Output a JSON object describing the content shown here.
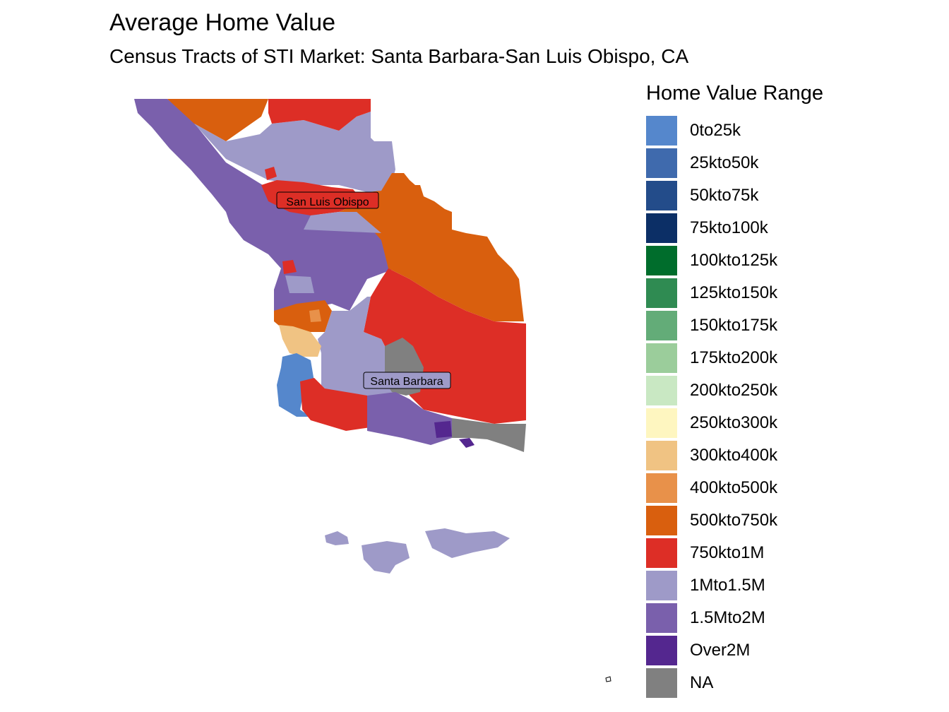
{
  "header": {
    "title": "Average Home Value",
    "subtitle": "Census Tracts of STI Market: Santa Barbara-San Luis Obispo, CA"
  },
  "map": {
    "place_labels": {
      "north": "San Luis Obispo",
      "south": "Santa Barbara"
    },
    "colors": {
      "range_0to25k": "#5587cc",
      "range_500kto750k": "#d95f0e",
      "range_750kto1M": "#dd2e26",
      "range_1Mto1_5M": "#9e9ac8",
      "range_1_5Mto2M": "#7a60ac",
      "range_over2M": "#54278f",
      "range_300kto400k": "#f0c383",
      "range_400kto500k": "#e8914a",
      "na": "#808080"
    }
  },
  "legend": {
    "title": "Home Value Range",
    "items": [
      {
        "label": "0to25k",
        "color": "#5587cc"
      },
      {
        "label": "25kto50k",
        "color": "#3f6aad"
      },
      {
        "label": "50kto75k",
        "color": "#234c8a"
      },
      {
        "label": "75kto100k",
        "color": "#0c2f66"
      },
      {
        "label": "100kto125k",
        "color": "#006d2c"
      },
      {
        "label": "125kto150k",
        "color": "#2f8b52"
      },
      {
        "label": "150kto175k",
        "color": "#63ac78"
      },
      {
        "label": "175kto200k",
        "color": "#9bcd9b"
      },
      {
        "label": "200kto250k",
        "color": "#c9e8c3"
      },
      {
        "label": "250kto300k",
        "color": "#fef6c0"
      },
      {
        "label": "300kto400k",
        "color": "#f0c383"
      },
      {
        "label": "400kto500k",
        "color": "#e8914a"
      },
      {
        "label": "500kto750k",
        "color": "#d95f0e"
      },
      {
        "label": "750kto1M",
        "color": "#dd2e26"
      },
      {
        "label": "1Mto1.5M",
        "color": "#9e9ac8"
      },
      {
        "label": "1.5Mto2M",
        "color": "#7a60ac"
      },
      {
        "label": "Over2M",
        "color": "#54278f"
      },
      {
        "label": "NA",
        "color": "#808080"
      }
    ]
  }
}
